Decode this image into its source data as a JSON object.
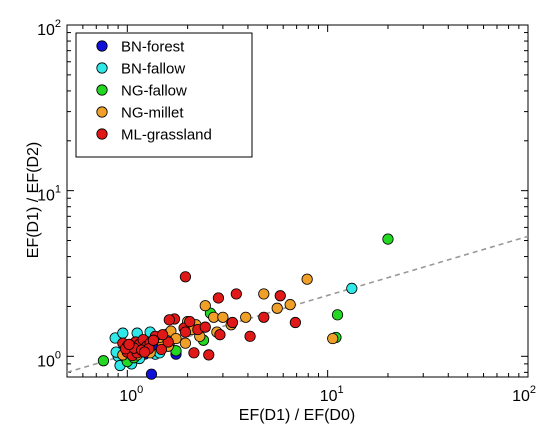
{
  "chart_data": {
    "type": "scatter",
    "title": "",
    "xlabel": "EF(D1) / EF(D0)",
    "ylabel": "EF(D1) / EF(D2)",
    "xscale": "log",
    "yscale": "log",
    "xlim": [
      0.5,
      100
    ],
    "ylim": [
      0.75,
      100
    ],
    "x_ticks": [
      {
        "value": 1,
        "base": "10",
        "exp": "0"
      },
      {
        "value": 10,
        "base": "10",
        "exp": "1"
      },
      {
        "value": 100,
        "base": "10",
        "exp": "2"
      }
    ],
    "y_ticks": [
      {
        "value": 1,
        "base": "10",
        "exp": "0"
      },
      {
        "value": 10,
        "base": "10",
        "exp": "1"
      },
      {
        "value": 100,
        "base": "10",
        "exp": "2"
      }
    ],
    "grid": false,
    "legend_position": "top-left",
    "reference_line": {
      "style": "dashed",
      "color": "#999999",
      "points": [
        [
          0.5,
          0.8
        ],
        [
          100,
          5.3
        ]
      ]
    },
    "series": [
      {
        "name": "BN-forest",
        "color": "#1010d8",
        "points": [
          [
            1.32,
            0.78
          ],
          [
            1.22,
            1.03
          ],
          [
            1.0,
            1.05
          ],
          [
            1.75,
            1.03
          ],
          [
            1.42,
            1.1
          ],
          [
            0.95,
            0.95
          ]
        ]
      },
      {
        "name": "BN-fallow",
        "color": "#30e8e8",
        "points": [
          [
            0.87,
            1.29
          ],
          [
            0.95,
            1.38
          ],
          [
            1.12,
            1.38
          ],
          [
            1.3,
            1.4
          ],
          [
            1.58,
            1.36
          ],
          [
            1.62,
            1.2
          ],
          [
            0.9,
            1.0
          ],
          [
            1.05,
            0.9
          ],
          [
            0.92,
            0.88
          ],
          [
            1.1,
            1.15
          ],
          [
            1.05,
            1.03
          ],
          [
            1.2,
            1.1
          ],
          [
            1.5,
            1.25
          ],
          [
            1.02,
            1.12
          ],
          [
            0.98,
            0.98
          ],
          [
            1.38,
            1.03
          ],
          [
            13.2,
            2.57
          ],
          [
            1.15,
            0.97
          ],
          [
            0.88,
            1.06
          ],
          [
            1.45,
            1.05
          ],
          [
            1.25,
            1.22
          ]
        ]
      },
      {
        "name": "NG-fallow",
        "color": "#22d822",
        "points": [
          [
            0.76,
            0.94
          ],
          [
            1.0,
            0.93
          ],
          [
            1.08,
            0.98
          ],
          [
            1.15,
            1.08
          ],
          [
            2.4,
            1.25
          ],
          [
            2.6,
            1.82
          ],
          [
            11.2,
            1.78
          ],
          [
            20.0,
            5.1
          ],
          [
            11.0,
            1.3
          ],
          [
            1.75,
            1.08
          ]
        ]
      },
      {
        "name": "NG-millet",
        "color": "#f0a028",
        "points": [
          [
            1.0,
            1.08
          ],
          [
            1.12,
            1.02
          ],
          [
            1.3,
            1.05
          ],
          [
            1.5,
            1.16
          ],
          [
            1.65,
            1.42
          ],
          [
            1.75,
            1.28
          ],
          [
            2.0,
            1.62
          ],
          [
            2.2,
            1.55
          ],
          [
            2.45,
            2.02
          ],
          [
            2.7,
            1.72
          ],
          [
            3.0,
            1.72
          ],
          [
            3.3,
            1.55
          ],
          [
            3.9,
            1.72
          ],
          [
            4.8,
            2.38
          ],
          [
            5.6,
            1.95
          ],
          [
            6.5,
            2.05
          ],
          [
            7.9,
            2.92
          ],
          [
            10.6,
            1.28
          ],
          [
            1.6,
            1.15
          ],
          [
            2.3,
            1.32
          ],
          [
            1.95,
            1.2
          ],
          [
            2.8,
            1.4
          ],
          [
            1.12,
            1.2
          ],
          [
            0.95,
            1.02
          ],
          [
            1.45,
            1.3
          ],
          [
            2.1,
            1.45
          ]
        ]
      },
      {
        "name": "ML-grassland",
        "color": "#e01818",
        "points": [
          [
            1.95,
            3.02
          ],
          [
            2.85,
            2.25
          ],
          [
            3.5,
            2.38
          ],
          [
            5.8,
            2.32
          ],
          [
            0.95,
            1.2
          ],
          [
            1.0,
            1.15
          ],
          [
            1.05,
            1.1
          ],
          [
            1.1,
            1.22
          ],
          [
            1.15,
            1.18
          ],
          [
            1.2,
            1.26
          ],
          [
            1.25,
            1.15
          ],
          [
            1.3,
            1.2
          ],
          [
            1.38,
            1.32
          ],
          [
            1.48,
            1.1
          ],
          [
            1.6,
            1.22
          ],
          [
            1.72,
            1.68
          ],
          [
            1.92,
            1.48
          ],
          [
            2.05,
            1.62
          ],
          [
            2.25,
            1.45
          ],
          [
            2.45,
            1.5
          ],
          [
            2.15,
            1.05
          ],
          [
            2.9,
            1.35
          ],
          [
            3.35,
            1.6
          ],
          [
            4.1,
            1.32
          ],
          [
            4.8,
            1.72
          ],
          [
            6.9,
            1.6
          ],
          [
            1.0,
            1.06
          ],
          [
            1.06,
            1.01
          ],
          [
            1.12,
            1.05
          ],
          [
            0.98,
            1.11
          ],
          [
            1.08,
            1.12
          ],
          [
            1.18,
            1.09
          ],
          [
            1.28,
            1.11
          ],
          [
            1.35,
            1.25
          ],
          [
            1.02,
            1.18
          ],
          [
            1.62,
            1.66
          ],
          [
            2.55,
            1.02
          ],
          [
            1.22,
            1.06
          ],
          [
            1.95,
            1.4
          ],
          [
            1.5,
            1.35
          ]
        ]
      }
    ]
  }
}
